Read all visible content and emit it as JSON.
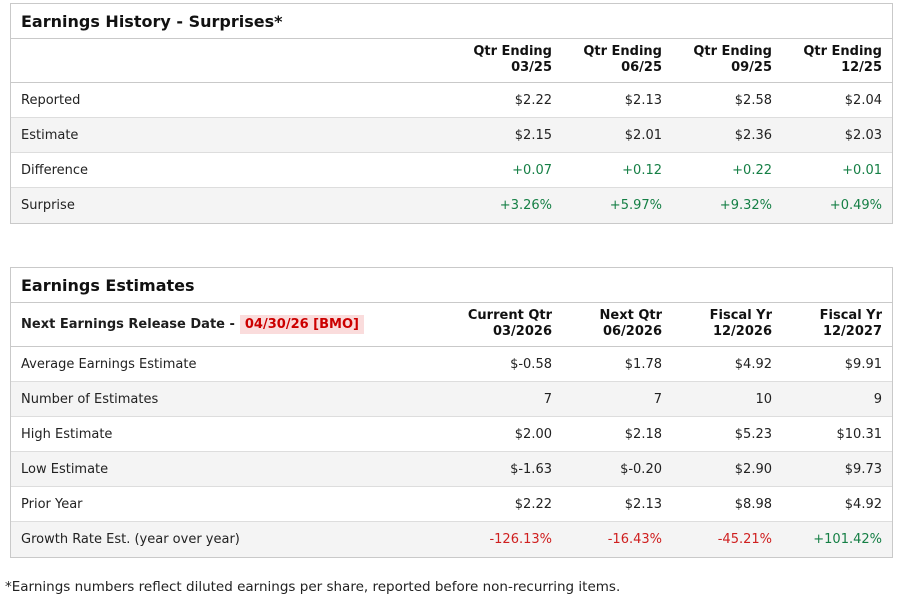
{
  "colors": {
    "positive": "#157f45",
    "negative": "#cf1f1f",
    "date_text": "#cc0000",
    "date_bg": "#fadcdc"
  },
  "history": {
    "title": "Earnings History - Surprises*",
    "columns": [
      {
        "line1": "Qtr Ending",
        "line2": "03/25"
      },
      {
        "line1": "Qtr Ending",
        "line2": "06/25"
      },
      {
        "line1": "Qtr Ending",
        "line2": "09/25"
      },
      {
        "line1": "Qtr Ending",
        "line2": "12/25"
      }
    ],
    "rows": [
      {
        "label": "Reported",
        "values": [
          "$2.22",
          "$2.13",
          "$2.58",
          "$2.04"
        ],
        "value_colors": [
          "default",
          "default",
          "default",
          "default"
        ]
      },
      {
        "label": "Estimate",
        "values": [
          "$2.15",
          "$2.01",
          "$2.36",
          "$2.03"
        ],
        "value_colors": [
          "default",
          "default",
          "default",
          "default"
        ]
      },
      {
        "label": "Difference",
        "values": [
          "+0.07",
          "+0.12",
          "+0.22",
          "+0.01"
        ],
        "value_colors": [
          "positive",
          "positive",
          "positive",
          "positive"
        ]
      },
      {
        "label": "Surprise",
        "values": [
          "+3.26%",
          "+5.97%",
          "+9.32%",
          "+0.49%"
        ],
        "value_colors": [
          "positive",
          "positive",
          "positive",
          "positive"
        ]
      }
    ]
  },
  "estimates": {
    "title": "Earnings Estimates",
    "release_label": "Next Earnings Release Date -",
    "release_date": "04/30/26 [BMO]",
    "columns": [
      {
        "line1": "Current Qtr",
        "line2": "03/2026"
      },
      {
        "line1": "Next Qtr",
        "line2": "06/2026"
      },
      {
        "line1": "Fiscal Yr",
        "line2": "12/2026"
      },
      {
        "line1": "Fiscal Yr",
        "line2": "12/2027"
      }
    ],
    "rows": [
      {
        "label": "Average Earnings Estimate",
        "values": [
          "$-0.58",
          "$1.78",
          "$4.92",
          "$9.91"
        ],
        "value_colors": [
          "default",
          "default",
          "default",
          "default"
        ]
      },
      {
        "label": "Number of Estimates",
        "values": [
          "7",
          "7",
          "10",
          "9"
        ],
        "value_colors": [
          "default",
          "default",
          "default",
          "default"
        ]
      },
      {
        "label": "High Estimate",
        "values": [
          "$2.00",
          "$2.18",
          "$5.23",
          "$10.31"
        ],
        "value_colors": [
          "default",
          "default",
          "default",
          "default"
        ]
      },
      {
        "label": "Low Estimate",
        "values": [
          "$-1.63",
          "$-0.20",
          "$2.90",
          "$9.73"
        ],
        "value_colors": [
          "default",
          "default",
          "default",
          "default"
        ]
      },
      {
        "label": "Prior Year",
        "values": [
          "$2.22",
          "$2.13",
          "$8.98",
          "$4.92"
        ],
        "value_colors": [
          "default",
          "default",
          "default",
          "default"
        ]
      },
      {
        "label": "Growth Rate Est. (year over year)",
        "values": [
          "-126.13%",
          "-16.43%",
          "-45.21%",
          "+101.42%"
        ],
        "value_colors": [
          "negative",
          "negative",
          "negative",
          "positive"
        ]
      }
    ]
  },
  "footnote": "*Earnings numbers reflect diluted earnings per share, reported before non-recurring items."
}
